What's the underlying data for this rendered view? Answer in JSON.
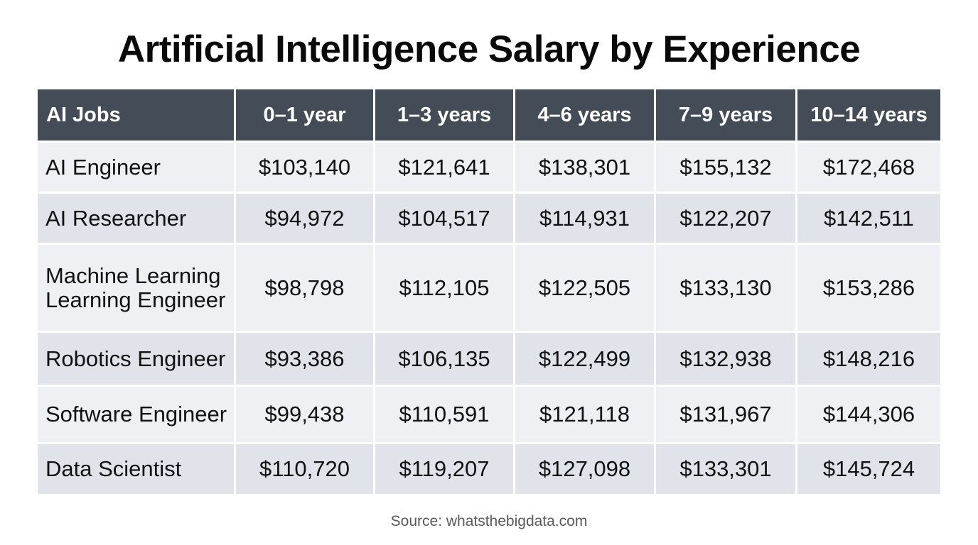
{
  "title": "Artificial Intelligence Salary by Experience",
  "source": "Source: whatsthebigdata.com",
  "colors": {
    "header_bg": "#434c57",
    "header_text": "#ffffff",
    "row_light": "#eef0f3",
    "row_dark": "#e0e4ea"
  },
  "chart_data": {
    "type": "table",
    "title": "Artificial Intelligence Salary by Experience",
    "columns": [
      "AI Jobs",
      "0–1 year",
      "1–3 years",
      "4–6 years",
      "7–9 years",
      "10–14 years"
    ],
    "rows": [
      {
        "job": "AI Engineer",
        "values": [
          "$103,140",
          "$121,641",
          "$138,301",
          "$155,132",
          "$172,468"
        ]
      },
      {
        "job": "AI Researcher",
        "values": [
          "$94,972",
          "$104,517",
          "$114,931",
          "$122,207",
          "$142,511"
        ]
      },
      {
        "job": "Machine Learning Learning Engineer",
        "values": [
          "$98,798",
          "$112,105",
          "$122,505",
          "$133,130",
          "$153,286"
        ]
      },
      {
        "job": "Robotics Engineer",
        "values": [
          "$93,386",
          "$106,135",
          "$122,499",
          "$132,938",
          "$148,216"
        ]
      },
      {
        "job": "Software Engineer",
        "values": [
          "$99,438",
          "$110,591",
          "$121,118",
          "$131,967",
          "$144,306"
        ]
      },
      {
        "job": "Data Scientist",
        "values": [
          "$110,720",
          "$119,207",
          "$127,098",
          "$133,301",
          "$145,724"
        ]
      }
    ]
  }
}
